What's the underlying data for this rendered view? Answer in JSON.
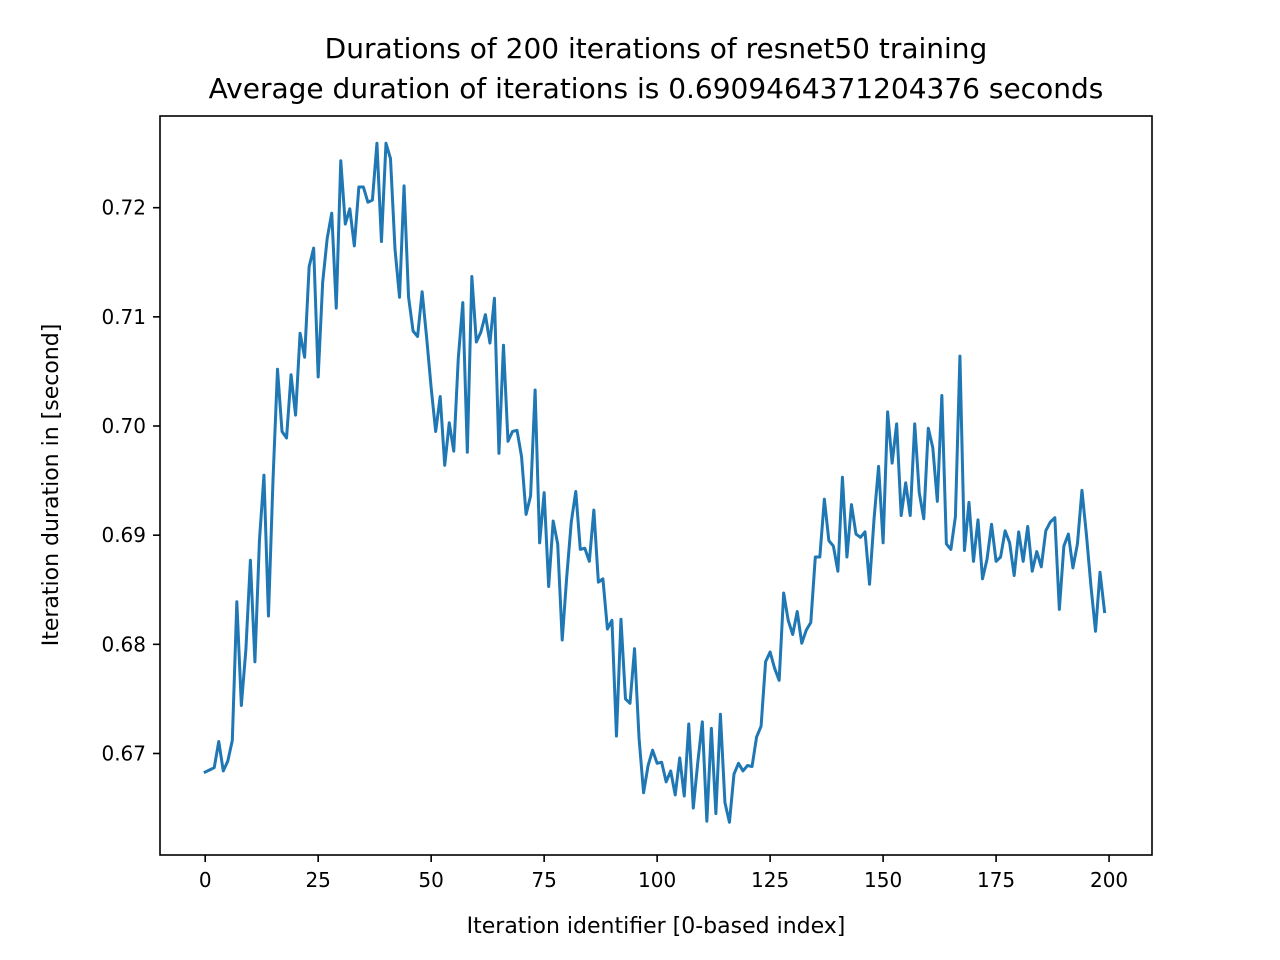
{
  "chart_data": {
    "type": "line",
    "title": "Durations of 200 iterations of resnet50 training",
    "subtitle": "Average duration of iterations is 0.6909464371204376 seconds",
    "xlabel": "Iteration identifier [0-based index]",
    "ylabel": "Iteration duration in [second]",
    "xlim": [
      -10,
      209.5
    ],
    "ylim": [
      0.6607,
      0.7284
    ],
    "x_ticks": [
      0,
      25,
      50,
      75,
      100,
      125,
      150,
      175,
      200
    ],
    "x_tick_labels": [
      "0",
      "25",
      "50",
      "75",
      "100",
      "125",
      "150",
      "175",
      "200"
    ],
    "y_ticks": [
      0.67,
      0.68,
      0.69,
      0.7,
      0.71,
      0.72
    ],
    "y_tick_labels": [
      "0.67",
      "0.68",
      "0.69",
      "0.70",
      "0.71",
      "0.72"
    ],
    "grid": false,
    "line_color": "#1f77b4",
    "series": [
      {
        "x_start": 0,
        "x_step": 1,
        "values": [
          0.6683,
          0.6685,
          0.6687,
          0.6711,
          0.6684,
          0.6693,
          0.6712,
          0.6839,
          0.6744,
          0.6795,
          0.6877,
          0.6784,
          0.6895,
          0.6955,
          0.6826,
          0.695,
          0.7052,
          0.6995,
          0.6989,
          0.7047,
          0.701,
          0.7085,
          0.7063,
          0.7146,
          0.7163,
          0.7045,
          0.7132,
          0.7172,
          0.7195,
          0.7108,
          0.7243,
          0.7185,
          0.7199,
          0.7165,
          0.7219,
          0.7219,
          0.7205,
          0.7207,
          0.7259,
          0.7169,
          0.7259,
          0.7245,
          0.7162,
          0.7118,
          0.722,
          0.7118,
          0.7087,
          0.7082,
          0.7123,
          0.7081,
          0.7035,
          0.6995,
          0.7027,
          0.6964,
          0.7003,
          0.6977,
          0.7062,
          0.7113,
          0.6976,
          0.7137,
          0.7077,
          0.7086,
          0.7102,
          0.7076,
          0.7117,
          0.6975,
          0.7074,
          0.6986,
          0.6995,
          0.6996,
          0.6972,
          0.6919,
          0.6936,
          0.7033,
          0.6893,
          0.6939,
          0.6853,
          0.6913,
          0.6892,
          0.6804,
          0.6862,
          0.6912,
          0.694,
          0.6887,
          0.6888,
          0.6876,
          0.6923,
          0.6857,
          0.686,
          0.6814,
          0.6822,
          0.6716,
          0.6823,
          0.675,
          0.6746,
          0.6796,
          0.6714,
          0.6664,
          0.6689,
          0.6703,
          0.6691,
          0.6692,
          0.6674,
          0.6684,
          0.6662,
          0.6696,
          0.6661,
          0.6727,
          0.665,
          0.6692,
          0.6729,
          0.6638,
          0.6723,
          0.6645,
          0.6736,
          0.6655,
          0.6637,
          0.6681,
          0.6691,
          0.6684,
          0.6689,
          0.6688,
          0.6715,
          0.6725,
          0.6784,
          0.6793,
          0.6778,
          0.6767,
          0.6847,
          0.6822,
          0.6809,
          0.683,
          0.6801,
          0.6813,
          0.682,
          0.688,
          0.688,
          0.6933,
          0.6895,
          0.689,
          0.6867,
          0.6953,
          0.688,
          0.6928,
          0.6901,
          0.6898,
          0.6903,
          0.6855,
          0.6915,
          0.6963,
          0.6893,
          0.7013,
          0.6966,
          0.7002,
          0.6918,
          0.6948,
          0.6918,
          0.7002,
          0.6939,
          0.6915,
          0.6998,
          0.698,
          0.6931,
          0.7028,
          0.6892,
          0.6887,
          0.6917,
          0.7064,
          0.6886,
          0.693,
          0.6876,
          0.6914,
          0.686,
          0.6878,
          0.691,
          0.6876,
          0.688,
          0.6904,
          0.6893,
          0.6863,
          0.6903,
          0.6876,
          0.6908,
          0.6867,
          0.6885,
          0.6871,
          0.6904,
          0.6912,
          0.6916,
          0.6832,
          0.689,
          0.6901,
          0.687,
          0.6892,
          0.6941,
          0.69,
          0.6853,
          0.6812,
          0.6866,
          0.683
        ]
      }
    ]
  }
}
